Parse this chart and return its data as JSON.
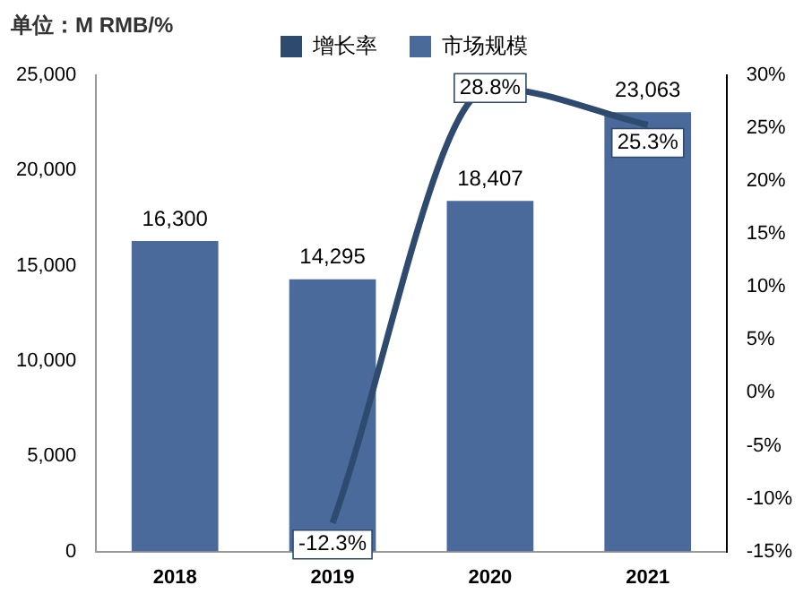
{
  "chart_data": {
    "type": "bar",
    "title": "单位：M RMB/%",
    "categories": [
      "2018",
      "2019",
      "2020",
      "2021"
    ],
    "series": [
      {
        "name": "增长率",
        "type": "line",
        "axis": "y2",
        "color": "#2e4a6e",
        "values": [
          null,
          -12.3,
          28.8,
          25.3
        ],
        "value_labels": [
          null,
          "-12.3%",
          "28.8%",
          "25.3%"
        ]
      },
      {
        "name": "市场规模",
        "color": "#4a6a9c",
        "values": [
          16300,
          14295,
          18407,
          23063
        ],
        "value_labels": [
          "16,300",
          "14,295",
          "18,407",
          "23,063"
        ]
      }
    ],
    "ylim": [
      0,
      25000
    ],
    "yticks": [
      {
        "value": 0,
        "label": "0"
      },
      {
        "value": 5000,
        "label": "5,000"
      },
      {
        "value": 10000,
        "label": "10,000"
      },
      {
        "value": 15000,
        "label": "15,000"
      },
      {
        "value": 20000,
        "label": "20,000"
      },
      {
        "value": 25000,
        "label": "25,000"
      }
    ],
    "y2lim": [
      -15,
      30
    ],
    "y2ticks": [
      {
        "value": -15,
        "label": "-15%"
      },
      {
        "value": -10,
        "label": "-10%"
      },
      {
        "value": -5,
        "label": "-5%"
      },
      {
        "value": 0,
        "label": "0%"
      },
      {
        "value": 5,
        "label": "5%"
      },
      {
        "value": 10,
        "label": "10%"
      },
      {
        "value": 15,
        "label": "15%"
      },
      {
        "value": 20,
        "label": "20%"
      },
      {
        "value": 25,
        "label": "25%"
      },
      {
        "value": 30,
        "label": "30%"
      }
    ],
    "legend": "top",
    "grid": false,
    "marker": "none",
    "line_style": "solid"
  }
}
